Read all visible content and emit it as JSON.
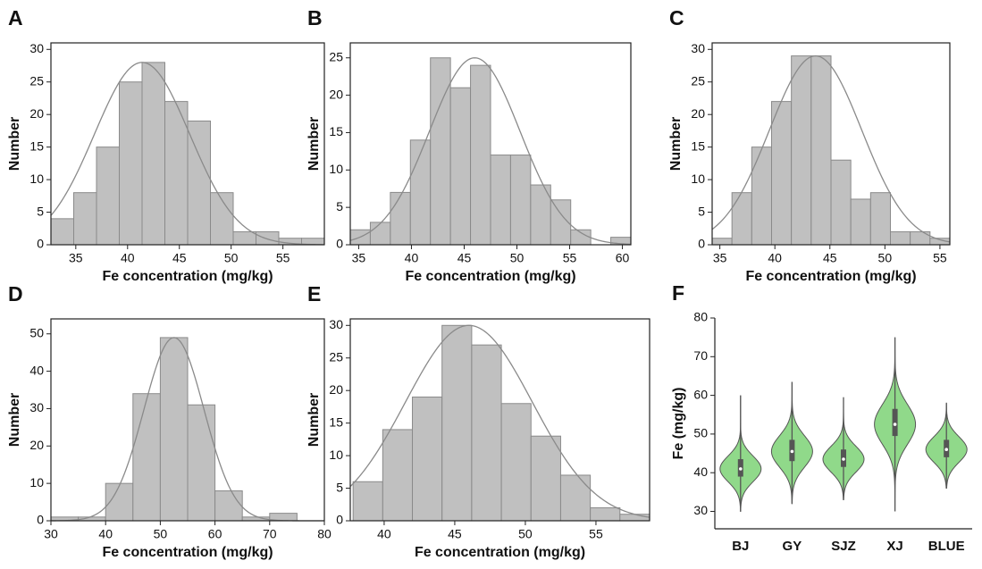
{
  "chart_data": [
    {
      "type": "histogram",
      "panel": "A",
      "xlabel": "Fe concentration (mg/kg)",
      "ylabel": "Number",
      "bins": [
        32.6,
        34.8,
        37,
        39.2,
        41.4,
        43.6,
        45.8,
        48,
        50.2,
        52.4,
        54.6,
        56.8,
        59
      ],
      "values": [
        4,
        8,
        15,
        25,
        28,
        22,
        19,
        8,
        2,
        2,
        1,
        1
      ],
      "fit": {
        "mean": 41.4,
        "sd": 4.6,
        "peak": 28
      },
      "xlim": [
        32.6,
        59
      ],
      "xticks": [
        35,
        40,
        45,
        50,
        55
      ],
      "ylim": [
        0,
        31
      ],
      "yticks": [
        0,
        5,
        10,
        15,
        20,
        25,
        30
      ],
      "color": "#c0c0c0",
      "edge_color": "#8a8a8a",
      "curve_color": "#8a8a8a"
    },
    {
      "type": "histogram",
      "panel": "B",
      "xlabel": "Fe concentration (mg/kg)",
      "ylabel": "Number",
      "bins": [
        34.2,
        36.1,
        38,
        39.9,
        41.8,
        43.7,
        45.6,
        47.5,
        49.4,
        51.3,
        53.2,
        55.1,
        57,
        58.9,
        60.8
      ],
      "values": [
        2,
        3,
        7,
        14,
        25,
        21,
        24,
        12,
        12,
        8,
        6,
        2,
        0,
        1
      ],
      "fit": {
        "mean": 46,
        "sd": 4.3,
        "peak": 25
      },
      "xlim": [
        34.2,
        60.8
      ],
      "xticks": [
        35,
        40,
        45,
        50,
        55,
        60
      ],
      "ylim": [
        0,
        27
      ],
      "yticks": [
        0,
        5,
        10,
        15,
        20,
        25
      ],
      "color": "#c0c0c0",
      "edge_color": "#8a8a8a",
      "curve_color": "#8a8a8a"
    },
    {
      "type": "histogram",
      "panel": "C",
      "xlabel": "Fe concentration (mg/kg)",
      "ylabel": "Number",
      "bins": [
        34.3,
        36.1,
        37.9,
        39.7,
        41.5,
        43.3,
        45.1,
        46.9,
        48.7,
        50.5,
        52.3,
        54.1,
        55.9
      ],
      "values": [
        1,
        8,
        15,
        22,
        29,
        29,
        13,
        7,
        8,
        2,
        2,
        1
      ],
      "fit": {
        "mean": 43.7,
        "sd": 4.2,
        "peak": 29
      },
      "xlim": [
        34.3,
        55.9
      ],
      "xticks": [
        35,
        40,
        45,
        50,
        55
      ],
      "ylim": [
        0,
        31
      ],
      "yticks": [
        0,
        5,
        10,
        15,
        20,
        25,
        30
      ],
      "color": "#c0c0c0",
      "edge_color": "#8a8a8a",
      "curve_color": "#8a8a8a"
    },
    {
      "type": "histogram",
      "panel": "D",
      "xlabel": "Fe concentration (mg/kg)",
      "ylabel": "Number",
      "bins": [
        30,
        35,
        40,
        45,
        50,
        55,
        60,
        65,
        70,
        75
      ],
      "values": [
        1,
        1,
        10,
        34,
        49,
        31,
        8,
        1,
        2
      ],
      "fit": {
        "mean": 52.5,
        "sd": 5.5,
        "peak": 49
      },
      "xlim": [
        30,
        80
      ],
      "xticks": [
        30,
        40,
        50,
        60,
        70,
        80
      ],
      "ylim": [
        0,
        54
      ],
      "yticks": [
        0,
        10,
        20,
        30,
        40,
        50
      ],
      "color": "#c0c0c0",
      "edge_color": "#8a8a8a",
      "curve_color": "#8a8a8a"
    },
    {
      "type": "histogram",
      "panel": "E",
      "xlabel": "Fe concentration (mg/kg)",
      "ylabel": "Number",
      "bins": [
        37.8,
        39.9,
        42,
        44.1,
        46.2,
        48.3,
        50.4,
        52.5,
        54.6,
        56.7,
        58.8
      ],
      "values": [
        6,
        14,
        19,
        30,
        27,
        18,
        13,
        7,
        2,
        1
      ],
      "fit": {
        "mean": 46,
        "sd": 4.5,
        "peak": 30
      },
      "xlim": [
        37.6,
        58.8
      ],
      "xticks": [
        40,
        45,
        50,
        55
      ],
      "ylim": [
        0,
        31
      ],
      "yticks": [
        0,
        5,
        10,
        15,
        20,
        25,
        30
      ],
      "color": "#c0c0c0",
      "edge_color": "#8a8a8a",
      "curve_color": "#8a8a8a"
    },
    {
      "type": "violin",
      "panel": "F",
      "ylabel": "Fe (mg/kg)",
      "categories": [
        "BJ",
        "GY",
        "SJZ",
        "XJ",
        "BLUE"
      ],
      "min": [
        30,
        32,
        33,
        30,
        36
      ],
      "q1": [
        39,
        43,
        41.5,
        49.5,
        44
      ],
      "median": [
        41,
        45.5,
        43.5,
        52.5,
        46
      ],
      "q3": [
        43.5,
        48.5,
        46,
        56.5,
        48.5
      ],
      "max": [
        60,
        63.5,
        59.5,
        75,
        58
      ],
      "ylim": [
        25.5,
        80
      ],
      "yticks": [
        30,
        40,
        50,
        60,
        70,
        80
      ],
      "color": "#90d98a",
      "edge_color": "#555555"
    }
  ]
}
